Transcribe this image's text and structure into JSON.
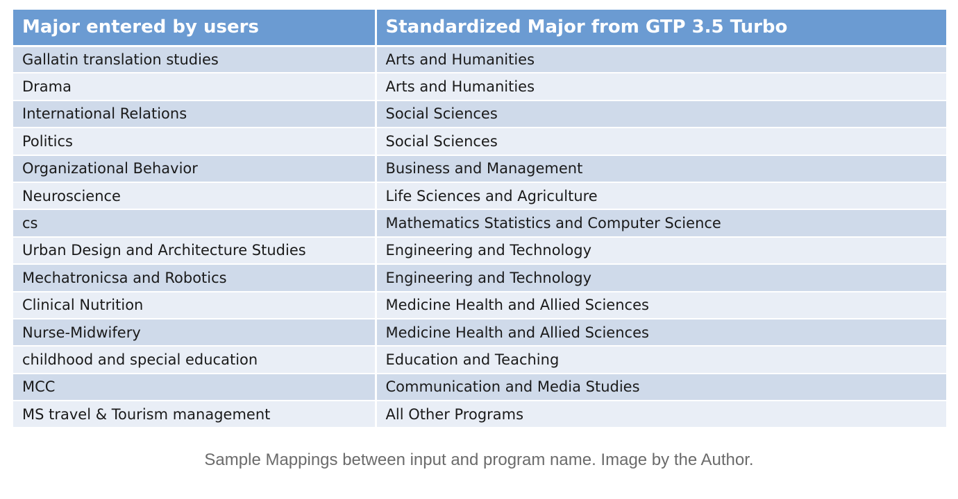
{
  "table": {
    "headers": [
      "Major entered by users",
      "Standardized Major from GTP 3.5 Turbo"
    ],
    "rows": [
      [
        "Gallatin translation studies",
        "Arts and Humanities"
      ],
      [
        "Drama",
        "Arts and Humanities"
      ],
      [
        "International Relations",
        "Social Sciences"
      ],
      [
        "Politics",
        "Social Sciences"
      ],
      [
        "Organizational Behavior",
        "Business and Management"
      ],
      [
        "Neuroscience",
        "Life Sciences and Agriculture"
      ],
      [
        "cs",
        "Mathematics Statistics and Computer Science"
      ],
      [
        "Urban Design and Architecture Studies",
        "Engineering and Technology"
      ],
      [
        "Mechatronicsa and Robotics",
        "Engineering and Technology"
      ],
      [
        "Clinical Nutrition",
        "Medicine Health and Allied Sciences"
      ],
      [
        "Nurse-Midwifery",
        "Medicine Health and Allied Sciences"
      ],
      [
        "childhood and special education",
        "Education and Teaching"
      ],
      [
        "MCC",
        "Communication and Media Studies"
      ],
      [
        "MS travel & Tourism management",
        "All Other Programs"
      ]
    ]
  },
  "caption": "Sample Mappings between input and program name. Image by the Author.",
  "colors": {
    "header_bg": "#6b9bd2",
    "row_odd_bg": "#cfdaea",
    "row_even_bg": "#e9eef6",
    "caption_text": "#6b6b6b"
  }
}
